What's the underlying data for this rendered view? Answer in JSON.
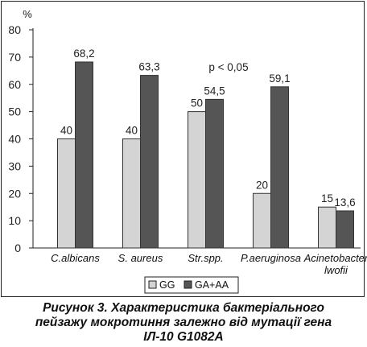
{
  "chart_data": {
    "type": "bar",
    "y_unit": "%",
    "ylim": [
      0,
      80
    ],
    "y_ticks": [
      0,
      10,
      20,
      30,
      40,
      50,
      60,
      70,
      80
    ],
    "categories": [
      "C.albicans",
      "S. aureus",
      "Str.spp.",
      "P.aeruginosa",
      [
        "Acinetobacter",
        "lwofii"
      ]
    ],
    "series": [
      {
        "name": "GG",
        "values": [
          40,
          40,
          50,
          20,
          15
        ],
        "labels": [
          "40",
          "40",
          "50",
          "20",
          "15"
        ],
        "color": "#d4d4d4"
      },
      {
        "name": "GA+AA",
        "values": [
          68.2,
          63.3,
          54.5,
          59.1,
          13.6
        ],
        "labels": [
          "68,2",
          "63,3",
          "54,5",
          "59,1",
          "13,6"
        ],
        "color": "#555555"
      }
    ],
    "annotation": "p < 0,05",
    "grid": false,
    "legend_position": "bottom-center"
  },
  "caption": {
    "line1": "Рисунок 3. Характеристика бактеріального",
    "line2": "пейзажу мокротиння залежно від мутації гена",
    "line3": "ІЛ-10 G1082A"
  }
}
